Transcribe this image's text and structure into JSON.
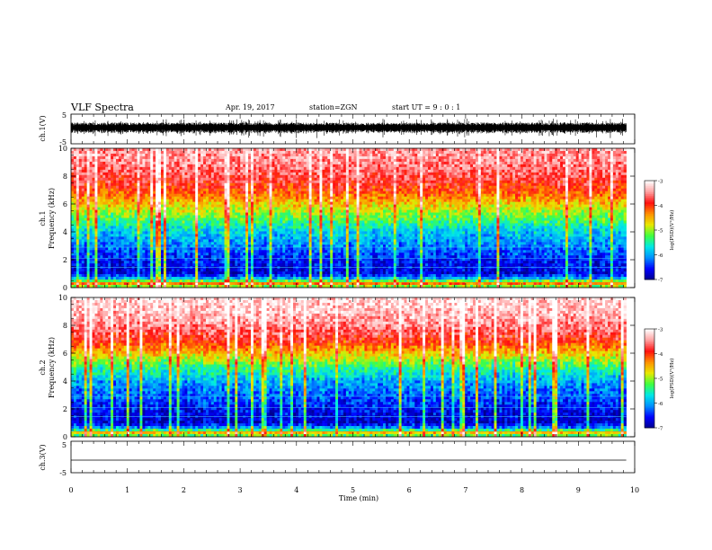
{
  "header": {
    "title": "VLF Spectra",
    "date": "Apr. 19, 2017",
    "station": "station=ZGN",
    "start": "start  UT =  9 : 0  : 1"
  },
  "panels": {
    "ch1_wave": {
      "label": "ch.1(V)",
      "ticks": [
        "5",
        "-5"
      ]
    },
    "ch1_spec": {
      "label_ch": "ch.1",
      "label_freq": "Frequency (kHz)",
      "yticks": [
        "0",
        "2",
        "4",
        "6",
        "8",
        "10"
      ]
    },
    "ch2_spec": {
      "label_ch": "ch.2",
      "label_freq": "Frequency (kHz)",
      "yticks": [
        "0",
        "2",
        "4",
        "6",
        "8",
        "10"
      ]
    },
    "ch3_wave": {
      "label": "ch.3(V)",
      "ticks": [
        "5",
        "-5"
      ]
    }
  },
  "xaxis": {
    "label": "Time (min)",
    "ticks": [
      "0",
      "1",
      "2",
      "3",
      "4",
      "5",
      "6",
      "7",
      "8",
      "9",
      "10"
    ]
  },
  "colorbar": {
    "label": "log(PSD)(V²/Hz)",
    "ticks": [
      "-3",
      "-4",
      "-5",
      "-6",
      "-7"
    ]
  },
  "colors": [
    "#00008f",
    "#0000ff",
    "#0090ff",
    "#00e8e8",
    "#40ff40",
    "#e8e800",
    "#ff9000",
    "#ff1010",
    "#ffa0a0",
    "#ffffff"
  ],
  "chart_data": {
    "type": "heatmap",
    "title": "VLF Spectra",
    "x_label": "Time (min)",
    "x_range": [
      0,
      10
    ],
    "data_end_min": 9.85,
    "panels": [
      {
        "name": "ch.1(V)",
        "kind": "waveform",
        "y_range": [
          -5,
          5
        ],
        "mean": 0.5,
        "amplitude": 1.5
      },
      {
        "name": "ch.1",
        "kind": "spectrogram",
        "y_label": "Frequency (kHz)",
        "y_range": [
          0,
          10
        ],
        "z_label": "log(PSD)(V²/Hz)",
        "z_range": [
          -7,
          -3
        ],
        "profile_khz": [
          0,
          0.3,
          0.6,
          1,
          2,
          3,
          4,
          5,
          6,
          7,
          8,
          9,
          10
        ],
        "profile_logpsd": [
          -5.4,
          -4.2,
          -5.8,
          -6.7,
          -6.5,
          -6.1,
          -5.8,
          -5.2,
          -4.6,
          -4.0,
          -3.7,
          -3.5,
          -3.4
        ]
      },
      {
        "name": "ch.2",
        "kind": "spectrogram",
        "y_label": "Frequency (kHz)",
        "y_range": [
          0,
          10
        ],
        "z_label": "log(PSD)(V²/Hz)",
        "z_range": [
          -7,
          -3
        ],
        "profile_khz": [
          0,
          0.3,
          0.6,
          1,
          2,
          3,
          4,
          5,
          6,
          7,
          8,
          9,
          10
        ],
        "profile_logpsd": [
          -5.5,
          -4.6,
          -6.0,
          -6.8,
          -6.6,
          -6.3,
          -6.0,
          -5.4,
          -4.6,
          -3.9,
          -3.5,
          -3.3,
          -3.2
        ]
      },
      {
        "name": "ch.3(V)",
        "kind": "waveform",
        "y_range": [
          -5,
          5
        ],
        "mean": -1,
        "amplitude": 0
      }
    ]
  }
}
